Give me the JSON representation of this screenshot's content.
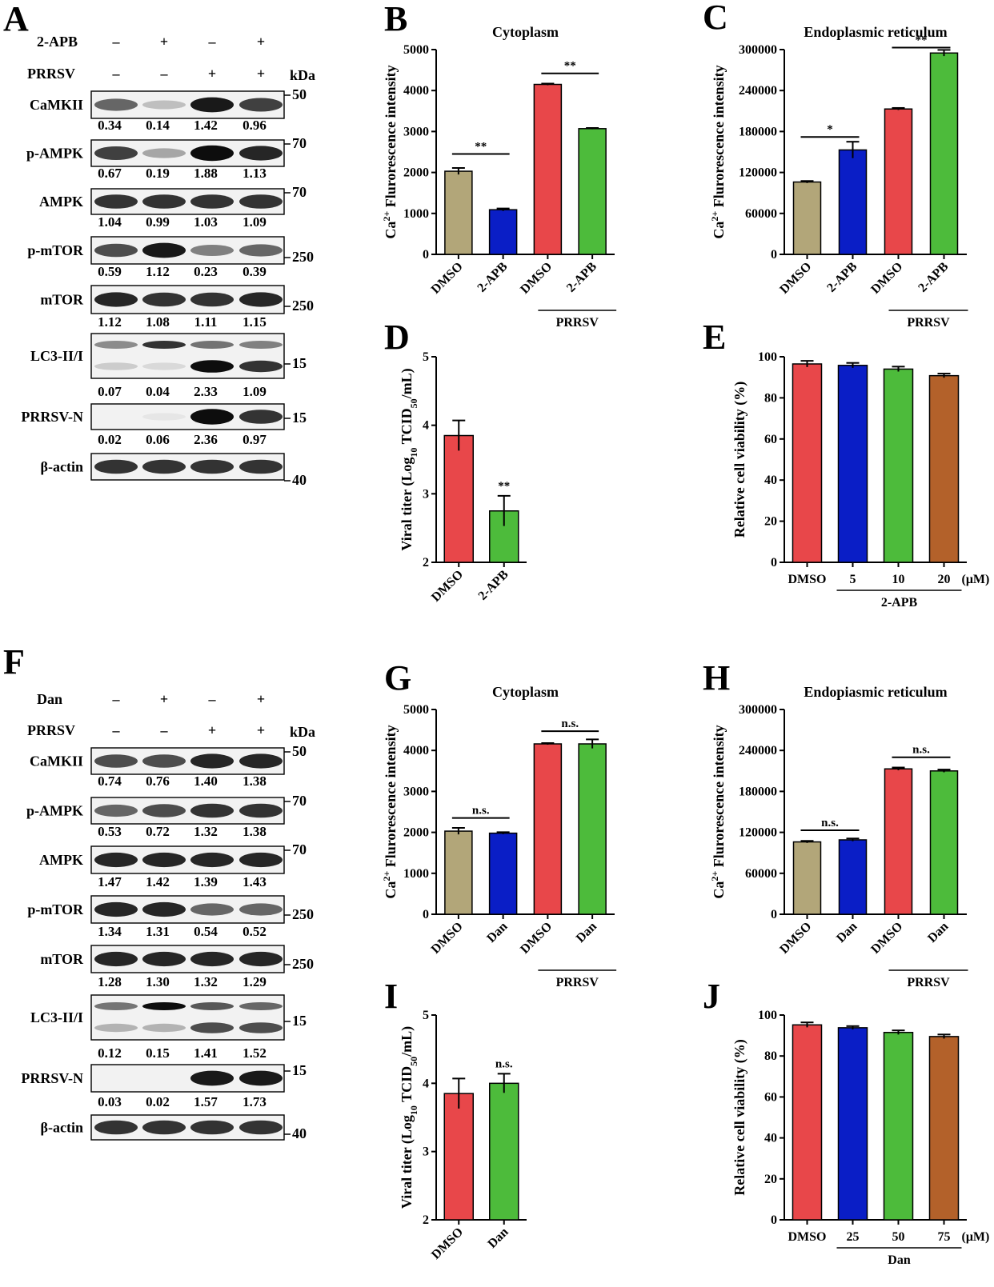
{
  "colors": {
    "dmso": "#b2a679",
    "blue": "#0a1ec6",
    "red": "#e8474a",
    "green": "#4dbb3b",
    "brown": "#b3612a"
  },
  "western_blots": [
    {
      "letter": "A",
      "treatment": "2-APB",
      "treatment_signs": [
        "–",
        "+",
        "–",
        "+"
      ],
      "virus": "PRRSV",
      "virus_signs": [
        "–",
        "–",
        "+",
        "+"
      ],
      "kda_label": "kDa",
      "blots": [
        {
          "name": "CaMKII",
          "kda": "50",
          "values": [
            "0.34",
            "0.14",
            "1.42",
            "0.96"
          ],
          "intensity": [
            0.6,
            0.25,
            0.9,
            0.75
          ]
        },
        {
          "name": "p-AMPK",
          "kda": "70",
          "values": [
            "0.67",
            "0.19",
            "1.88",
            "1.13"
          ],
          "intensity": [
            0.75,
            0.35,
            0.95,
            0.85
          ]
        },
        {
          "name": "AMPK",
          "kda": "70",
          "values": [
            "1.04",
            "0.99",
            "1.03",
            "1.09"
          ],
          "intensity": [
            0.8,
            0.8,
            0.8,
            0.8
          ]
        },
        {
          "name": "p-mTOR",
          "kda": "250",
          "values": [
            "0.59",
            "1.12",
            "0.23",
            "0.39"
          ],
          "intensity": [
            0.7,
            0.9,
            0.5,
            0.6
          ]
        },
        {
          "name": "mTOR",
          "kda": "250",
          "values": [
            "1.12",
            "1.08",
            "1.11",
            "1.15"
          ],
          "intensity": [
            0.85,
            0.8,
            0.8,
            0.85
          ]
        },
        {
          "name": "LC3-II/I",
          "kda": "15",
          "values": [
            "0.07",
            "0.04",
            "2.33",
            "1.09"
          ],
          "intensity": [
            0.2,
            0.15,
            0.95,
            0.8
          ]
        },
        {
          "name": "PRRSV-N",
          "kda": "15",
          "values": [
            "0.02",
            "0.06",
            "2.36",
            "0.97"
          ],
          "intensity": [
            0,
            0.1,
            0.95,
            0.8
          ]
        },
        {
          "name": "β-actin",
          "kda": "40",
          "values": [],
          "intensity": [
            0.8,
            0.8,
            0.8,
            0.8
          ]
        }
      ]
    },
    {
      "letter": "F",
      "treatment": "Dan",
      "treatment_signs": [
        "–",
        "+",
        "–",
        "+"
      ],
      "virus": "PRRSV",
      "virus_signs": [
        "–",
        "–",
        "+",
        "+"
      ],
      "kda_label": "kDa",
      "blots": [
        {
          "name": "CaMKII",
          "kda": "50",
          "values": [
            "0.74",
            "0.76",
            "1.40",
            "1.38"
          ],
          "intensity": [
            0.7,
            0.7,
            0.85,
            0.85
          ]
        },
        {
          "name": "p-AMPK",
          "kda": "70",
          "values": [
            "0.53",
            "0.72",
            "1.32",
            "1.38"
          ],
          "intensity": [
            0.6,
            0.7,
            0.8,
            0.8
          ]
        },
        {
          "name": "AMPK",
          "kda": "70",
          "values": [
            "1.47",
            "1.42",
            "1.39",
            "1.43"
          ],
          "intensity": [
            0.85,
            0.85,
            0.85,
            0.85
          ]
        },
        {
          "name": "p-mTOR",
          "kda": "250",
          "values": [
            "1.34",
            "1.31",
            "0.54",
            "0.52"
          ],
          "intensity": [
            0.85,
            0.85,
            0.6,
            0.6
          ]
        },
        {
          "name": "mTOR",
          "kda": "250",
          "values": [
            "1.28",
            "1.30",
            "1.32",
            "1.29"
          ],
          "intensity": [
            0.85,
            0.85,
            0.85,
            0.85
          ]
        },
        {
          "name": "LC3-II/I",
          "kda": "15",
          "values": [
            "0.12",
            "0.15",
            "1.41",
            "1.52"
          ],
          "intensity": [
            0.3,
            0.3,
            0.7,
            0.7
          ]
        },
        {
          "name": "PRRSV-N",
          "kda": "15",
          "values": [
            "0.03",
            "0.02",
            "1.57",
            "1.73"
          ],
          "intensity": [
            0,
            0,
            0.9,
            0.9
          ]
        },
        {
          "name": "β-actin",
          "kda": "40",
          "values": [],
          "intensity": [
            0.8,
            0.8,
            0.8,
            0.8
          ]
        }
      ]
    }
  ],
  "chart_data": [
    {
      "letter": "B",
      "type": "bar",
      "title": "Cytoplasm",
      "ylabel_main": "Ca",
      "ylabel_sup": "2+",
      "ylabel_rest": " Flurorescence intensity",
      "categories": [
        "DMSO",
        "2-APB",
        "DMSO",
        "2-APB"
      ],
      "values": [
        2030,
        1090,
        4150,
        3070
      ],
      "errors": [
        80,
        30,
        20,
        15
      ],
      "colors": [
        "#b2a679",
        "#0a1ec6",
        "#e8474a",
        "#4dbb3b"
      ],
      "ylim": [
        0,
        5000
      ],
      "yticks": [
        "0",
        "1000",
        "2000",
        "3000",
        "4000",
        "5000"
      ],
      "group_label": "PRRSV",
      "sig": [
        {
          "from": 0,
          "to": 1,
          "text": "**",
          "at": 2450
        },
        {
          "from": 2,
          "to": 3,
          "text": "**",
          "at": 4420
        }
      ]
    },
    {
      "letter": "C",
      "type": "bar",
      "title": "Endoplasmic reticulum",
      "ylabel_main": "Ca",
      "ylabel_sup": "2+",
      "ylabel_rest": " Flurorescence intensity",
      "categories": [
        "DMSO",
        "2-APB",
        "DMSO",
        "2-APB"
      ],
      "values": [
        106000,
        153000,
        213000,
        295000
      ],
      "errors": [
        1500,
        12000,
        1500,
        4500
      ],
      "colors": [
        "#b2a679",
        "#0a1ec6",
        "#e8474a",
        "#4dbb3b"
      ],
      "ylim": [
        0,
        300000
      ],
      "yticks": [
        "0",
        "60000",
        "120000",
        "180000",
        "240000",
        "300000"
      ],
      "group_label": "PRRSV",
      "sig": [
        {
          "from": 0,
          "to": 1,
          "text": "*",
          "at": 172000
        },
        {
          "from": 2,
          "to": 3,
          "text": "**",
          "at": 303000
        }
      ]
    },
    {
      "letter": "D",
      "type": "bar",
      "title": "",
      "ylabel_main": "Viral titer (Log",
      "ylabel_sub1": "10",
      "ylabel_mid": " TCID",
      "ylabel_sub2": "50",
      "ylabel_rest": "/mL)",
      "categories": [
        "DMSO",
        "2-APB"
      ],
      "values": [
        3.85,
        2.75
      ],
      "errors": [
        0.22,
        0.22
      ],
      "colors": [
        "#e8474a",
        "#4dbb3b"
      ],
      "ylim": [
        2,
        5
      ],
      "yticks": [
        "2",
        "3",
        "4",
        "5"
      ],
      "sig_single": [
        {
          "index": 1,
          "text": "**"
        }
      ]
    },
    {
      "letter": "E",
      "type": "bar",
      "title": "",
      "ylabel_main": "Relative cell viability (%)",
      "categories": [
        "DMSO",
        "5",
        "10",
        "20"
      ],
      "unit": "(μM)",
      "values": [
        96.5,
        95.8,
        94.0,
        90.8
      ],
      "errors": [
        1.5,
        1.2,
        1.2,
        1.0
      ],
      "colors": [
        "#e8474a",
        "#0a1ec6",
        "#4dbb3b",
        "#b3612a"
      ],
      "ylim": [
        0,
        100
      ],
      "yticks": [
        "0",
        "20",
        "40",
        "60",
        "80",
        "100"
      ],
      "group_label": "2-APB"
    },
    {
      "letter": "G",
      "type": "bar",
      "title": "Cytoplasm",
      "ylabel_main": "Ca",
      "ylabel_sup": "2+",
      "ylabel_rest": " Flurorescence intensity",
      "categories": [
        "DMSO",
        "Dan",
        "DMSO",
        "Dan"
      ],
      "values": [
        2030,
        1980,
        4160,
        4160
      ],
      "errors": [
        80,
        25,
        20,
        110
      ],
      "colors": [
        "#b2a679",
        "#0a1ec6",
        "#e8474a",
        "#4dbb3b"
      ],
      "ylim": [
        0,
        5000
      ],
      "yticks": [
        "0",
        "1000",
        "2000",
        "3000",
        "4000",
        "5000"
      ],
      "group_label": "PRRSV",
      "sig": [
        {
          "from": 0,
          "to": 1,
          "text": "n.s.",
          "at": 2350
        },
        {
          "from": 2,
          "to": 3,
          "text": "n.s.",
          "at": 4470
        }
      ]
    },
    {
      "letter": "H",
      "type": "bar",
      "title": "Endopiasmic reticulum",
      "ylabel_main": "Ca",
      "ylabel_sup": "2+",
      "ylabel_rest": " Flurorescence intensity",
      "categories": [
        "DMSO",
        "Dan",
        "DMSO",
        "Dan"
      ],
      "values": [
        106000,
        109000,
        213000,
        210000
      ],
      "errors": [
        1500,
        2000,
        2000,
        2000
      ],
      "colors": [
        "#b2a679",
        "#0a1ec6",
        "#e8474a",
        "#4dbb3b"
      ],
      "ylim": [
        0,
        300000
      ],
      "yticks": [
        "0",
        "60000",
        "120000",
        "180000",
        "240000",
        "300000"
      ],
      "group_label": "PRRSV",
      "sig": [
        {
          "from": 0,
          "to": 1,
          "text": "n.s.",
          "at": 123000
        },
        {
          "from": 2,
          "to": 3,
          "text": "n.s.",
          "at": 230000
        }
      ]
    },
    {
      "letter": "I",
      "type": "bar",
      "title": "",
      "ylabel_main": "Viral titer (Log",
      "ylabel_sub1": "10",
      "ylabel_mid": " TCID",
      "ylabel_sub2": "50",
      "ylabel_rest": "/mL)",
      "categories": [
        "DMSO",
        "Dan"
      ],
      "values": [
        3.85,
        4.0
      ],
      "errors": [
        0.22,
        0.14
      ],
      "colors": [
        "#e8474a",
        "#4dbb3b"
      ],
      "ylim": [
        2,
        5
      ],
      "yticks": [
        "2",
        "3",
        "4",
        "5"
      ],
      "sig_single": [
        {
          "index": 1,
          "text": "n.s."
        }
      ]
    },
    {
      "letter": "J",
      "type": "bar",
      "title": "",
      "ylabel_main": "Relative cell viability (%)",
      "categories": [
        "DMSO",
        "25",
        "50",
        "75"
      ],
      "unit": "(μM)",
      "values": [
        95.2,
        93.8,
        91.5,
        89.5
      ],
      "errors": [
        1.2,
        0.8,
        1.0,
        1.0
      ],
      "colors": [
        "#e8474a",
        "#0a1ec6",
        "#4dbb3b",
        "#b3612a"
      ],
      "ylim": [
        0,
        100
      ],
      "yticks": [
        "0",
        "20",
        "40",
        "60",
        "80",
        "100"
      ],
      "group_label": "Dan"
    }
  ]
}
